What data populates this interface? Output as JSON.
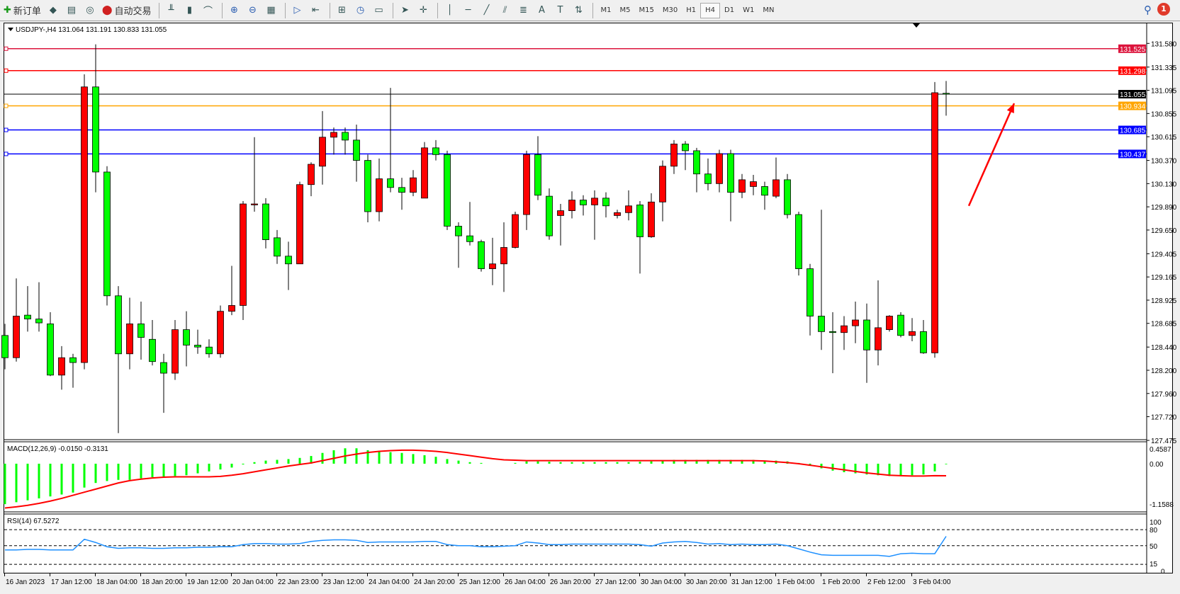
{
  "toolbar": {
    "new_order": "新订单",
    "auto_trading": "自动交易",
    "icons": [
      "new-order-icon",
      "market-watch-icon",
      "navigator-icon",
      "signals-icon",
      "auto-trading-icon",
      "bar-chart-icon",
      "candlestick-icon",
      "line-chart-icon",
      "zoom-in-icon",
      "zoom-out-icon",
      "tile-windows-icon",
      "auto-scroll-icon",
      "chart-shift-icon",
      "indicators-icon",
      "periods-icon",
      "templates-icon",
      "cursor-icon",
      "crosshair-icon",
      "vertical-line-icon",
      "horizontal-line-icon",
      "trendline-icon",
      "equidistant-channel-icon",
      "fibonacci-icon",
      "text-icon",
      "text-label-icon",
      "arrows-icon"
    ],
    "timeframes": [
      "M1",
      "M5",
      "M15",
      "M30",
      "H1",
      "H4",
      "D1",
      "W1",
      "MN"
    ],
    "active_timeframe": "H4",
    "notification_count": "1"
  },
  "chart": {
    "header": "USDJPY-,H4  131.064 131.191 130.833 131.055",
    "symbol": "USDJPY-",
    "period": "H4",
    "colors": {
      "bull": "#ff0000",
      "bear": "#00ff00",
      "macd_hist": "#00ff00",
      "signal": "#ff0000",
      "rsi": "#1e90ff"
    },
    "current_price": "131.055",
    "price_ticks": [
      "131.580",
      "131.335",
      "131.095",
      "130.855",
      "130.615",
      "130.370",
      "130.130",
      "129.890",
      "129.650",
      "129.405",
      "129.165",
      "128.925",
      "128.685",
      "128.440",
      "128.200",
      "127.960",
      "127.720",
      "127.475"
    ],
    "levels": [
      {
        "price": "131.525",
        "color": "#dc143c"
      },
      {
        "price": "131.298",
        "color": "#ff0000"
      },
      {
        "price": "130.934",
        "color": "#ffa500"
      },
      {
        "price": "130.685",
        "color": "#0000ff"
      },
      {
        "price": "130.437",
        "color": "#0000ff"
      }
    ],
    "annotation": {
      "type": "arrow",
      "color": "#ff0000",
      "from": {
        "bar": 85,
        "price": 129.9
      },
      "to": {
        "bar": 89,
        "price": 130.96
      }
    },
    "date_labels": [
      "16 Jan 2023",
      "17 Jan 12:00",
      "18 Jan 04:00",
      "18 Jan 20:00",
      "19 Jan 12:00",
      "20 Jan 04:00",
      "22 Jan 23:00",
      "23 Jan 12:00",
      "24 Jan 04:00",
      "24 Jan 20:00",
      "25 Jan 12:00",
      "26 Jan 04:00",
      "26 Jan 20:00",
      "27 Jan 12:00",
      "30 Jan 04:00",
      "30 Jan 20:00",
      "31 Jan 12:00",
      "1 Feb 04:00",
      "1 Feb 20:00",
      "2 Feb 12:00",
      "3 Feb 04:00"
    ]
  },
  "chart_data": {
    "type": "candlestick",
    "ohlc": [
      [
        128.56,
        128.68,
        128.21,
        128.33
      ],
      [
        128.33,
        129.15,
        128.29,
        128.76
      ],
      [
        128.77,
        129.07,
        128.6,
        128.73
      ],
      [
        128.73,
        129.11,
        128.6,
        128.69
      ],
      [
        128.68,
        128.8,
        128.14,
        128.15
      ],
      [
        128.15,
        128.45,
        128.0,
        128.33
      ],
      [
        128.33,
        128.37,
        128.02,
        128.28
      ],
      [
        128.28,
        131.26,
        128.21,
        131.13
      ],
      [
        131.13,
        131.57,
        130.04,
        130.25
      ],
      [
        130.25,
        130.31,
        128.87,
        128.97
      ],
      [
        128.97,
        129.07,
        127.55,
        128.37
      ],
      [
        128.37,
        128.95,
        128.21,
        128.68
      ],
      [
        128.68,
        128.91,
        128.31,
        128.54
      ],
      [
        128.52,
        128.72,
        128.25,
        128.29
      ],
      [
        128.28,
        128.37,
        127.76,
        128.17
      ],
      [
        128.17,
        128.72,
        128.1,
        128.62
      ],
      [
        128.62,
        128.81,
        128.24,
        128.46
      ],
      [
        128.46,
        128.62,
        128.37,
        128.44
      ],
      [
        128.44,
        128.52,
        128.33,
        128.37
      ],
      [
        128.37,
        128.87,
        128.33,
        128.81
      ],
      [
        128.81,
        129.28,
        128.77,
        128.87
      ],
      [
        128.87,
        129.95,
        128.72,
        129.92
      ],
      [
        129.91,
        130.61,
        129.84,
        129.92
      ],
      [
        129.92,
        129.98,
        129.46,
        129.55
      ],
      [
        129.57,
        129.65,
        129.3,
        129.38
      ],
      [
        129.38,
        129.53,
        129.03,
        129.3
      ],
      [
        129.3,
        130.15,
        129.3,
        130.12
      ],
      [
        130.12,
        130.35,
        130.0,
        130.33
      ],
      [
        130.31,
        130.88,
        130.12,
        130.61
      ],
      [
        130.61,
        130.71,
        130.43,
        130.66
      ],
      [
        130.66,
        130.71,
        130.43,
        130.58
      ],
      [
        130.58,
        130.74,
        130.15,
        130.37
      ],
      [
        130.37,
        130.43,
        129.73,
        129.84
      ],
      [
        129.84,
        130.39,
        129.74,
        130.18
      ],
      [
        130.18,
        131.12,
        130.04,
        130.09
      ],
      [
        130.09,
        130.19,
        129.86,
        130.04
      ],
      [
        130.04,
        130.27,
        130.0,
        130.19
      ],
      [
        129.98,
        130.56,
        129.98,
        130.5
      ],
      [
        130.5,
        130.58,
        130.37,
        130.43
      ],
      [
        130.43,
        130.47,
        129.65,
        129.69
      ],
      [
        129.69,
        129.73,
        129.26,
        129.59
      ],
      [
        129.59,
        129.94,
        129.49,
        129.53
      ],
      [
        129.53,
        129.55,
        129.22,
        129.25
      ],
      [
        129.25,
        129.57,
        129.08,
        129.3
      ],
      [
        129.3,
        129.73,
        129.01,
        129.47
      ],
      [
        129.47,
        129.84,
        129.46,
        129.81
      ],
      [
        129.81,
        130.47,
        129.65,
        130.43
      ],
      [
        130.43,
        130.62,
        129.96,
        130.01
      ],
      [
        130.0,
        130.08,
        129.55,
        129.59
      ],
      [
        129.8,
        129.92,
        129.49,
        129.85
      ],
      [
        129.85,
        130.05,
        129.77,
        129.96
      ],
      [
        129.96,
        130.01,
        129.8,
        129.91
      ],
      [
        129.91,
        130.06,
        129.55,
        129.98
      ],
      [
        129.98,
        130.04,
        129.78,
        129.9
      ],
      [
        129.8,
        129.86,
        129.77,
        129.83
      ],
      [
        129.83,
        130.06,
        129.75,
        129.9
      ],
      [
        129.91,
        129.95,
        129.2,
        129.58
      ],
      [
        129.58,
        130.03,
        129.57,
        129.94
      ],
      [
        129.94,
        130.37,
        129.74,
        130.31
      ],
      [
        130.31,
        130.58,
        130.23,
        130.54
      ],
      [
        130.54,
        130.57,
        130.27,
        130.47
      ],
      [
        130.47,
        130.5,
        130.04,
        130.23
      ],
      [
        130.23,
        130.39,
        130.06,
        130.13
      ],
      [
        130.13,
        130.48,
        130.04,
        130.44
      ],
      [
        130.44,
        130.48,
        129.74,
        130.04
      ],
      [
        130.04,
        130.23,
        129.98,
        130.17
      ],
      [
        130.1,
        130.22,
        130.01,
        130.15
      ],
      [
        130.1,
        130.15,
        129.86,
        130.01
      ],
      [
        130.0,
        130.4,
        129.98,
        130.17
      ],
      [
        130.17,
        130.23,
        129.77,
        129.81
      ],
      [
        129.81,
        129.84,
        129.18,
        129.25
      ],
      [
        129.25,
        129.3,
        128.56,
        128.76
      ],
      [
        128.76,
        129.86,
        128.41,
        128.6
      ],
      [
        128.6,
        128.8,
        128.17,
        128.59
      ],
      [
        128.59,
        128.76,
        128.41,
        128.66
      ],
      [
        128.66,
        128.91,
        128.48,
        128.72
      ],
      [
        128.72,
        128.89,
        128.07,
        128.41
      ],
      [
        128.41,
        129.13,
        128.25,
        128.64
      ],
      [
        128.62,
        128.77,
        128.6,
        128.76
      ],
      [
        128.77,
        128.8,
        128.54,
        128.56
      ],
      [
        128.56,
        128.74,
        128.5,
        128.6
      ],
      [
        128.6,
        128.72,
        128.37,
        128.38
      ],
      [
        128.38,
        131.18,
        128.33,
        131.07
      ],
      [
        131.064,
        131.191,
        130.833,
        131.055
      ]
    ],
    "ylim": [
      127.4,
      131.8
    ],
    "macd": {
      "label": "MACD(12,26,9) -0.0150 -0.3131",
      "ticks": [
        "0.4587",
        "0.00",
        "-1.1588"
      ],
      "ylim": [
        -1.1588,
        0.4587
      ],
      "hist": [
        -1.05,
        -1.0,
        -0.95,
        -0.9,
        -0.85,
        -0.8,
        -0.75,
        -0.62,
        -0.5,
        -0.45,
        -0.42,
        -0.42,
        -0.38,
        -0.35,
        -0.35,
        -0.32,
        -0.3,
        -0.25,
        -0.2,
        -0.15,
        -0.1,
        -0.02,
        0.04,
        0.08,
        0.1,
        0.12,
        0.15,
        0.2,
        0.28,
        0.35,
        0.4,
        0.4,
        0.35,
        0.32,
        0.3,
        0.28,
        0.25,
        0.22,
        0.18,
        0.12,
        0.08,
        0.04,
        0.02,
        0.0,
        0.0,
        0.02,
        0.06,
        0.06,
        0.05,
        0.04,
        0.04,
        0.04,
        0.04,
        0.04,
        0.04,
        0.04,
        0.05,
        0.06,
        0.08,
        0.1,
        0.1,
        0.1,
        0.1,
        0.1,
        0.1,
        0.1,
        0.1,
        0.08,
        0.08,
        0.06,
        0.02,
        -0.05,
        -0.12,
        -0.18,
        -0.22,
        -0.25,
        -0.28,
        -0.3,
        -0.32,
        -0.32,
        -0.3,
        -0.28,
        -0.2,
        -0.015
      ],
      "signal": [
        -1.15,
        -1.12,
        -1.08,
        -1.03,
        -0.97,
        -0.9,
        -0.82,
        -0.74,
        -0.66,
        -0.58,
        -0.5,
        -0.44,
        -0.4,
        -0.37,
        -0.35,
        -0.34,
        -0.34,
        -0.34,
        -0.34,
        -0.33,
        -0.3,
        -0.26,
        -0.21,
        -0.16,
        -0.11,
        -0.06,
        -0.02,
        0.02,
        0.08,
        0.14,
        0.2,
        0.25,
        0.29,
        0.32,
        0.34,
        0.35,
        0.35,
        0.34,
        0.32,
        0.29,
        0.25,
        0.21,
        0.17,
        0.13,
        0.1,
        0.09,
        0.08,
        0.08,
        0.08,
        0.08,
        0.08,
        0.08,
        0.08,
        0.08,
        0.08,
        0.08,
        0.08,
        0.08,
        0.08,
        0.08,
        0.08,
        0.08,
        0.08,
        0.08,
        0.08,
        0.08,
        0.08,
        0.07,
        0.05,
        0.03,
        0.0,
        -0.04,
        -0.08,
        -0.12,
        -0.16,
        -0.2,
        -0.24,
        -0.27,
        -0.3,
        -0.31,
        -0.32,
        -0.32,
        -0.31,
        -0.3131
      ]
    },
    "rsi": {
      "label": "RSI(14) 67.5272",
      "ticks": [
        "100",
        "80",
        "50",
        "15",
        "0"
      ],
      "levels": [
        80,
        50,
        15
      ],
      "ylim": [
        0,
        100
      ],
      "values": [
        42,
        42,
        43,
        43,
        42,
        42,
        42,
        62,
        56,
        48,
        45,
        46,
        46,
        45,
        45,
        46,
        46,
        47,
        47,
        48,
        48,
        52,
        54,
        54,
        53,
        53,
        54,
        58,
        60,
        61,
        61,
        60,
        56,
        57,
        57,
        57,
        57,
        58,
        58,
        52,
        50,
        50,
        48,
        48,
        49,
        50,
        57,
        55,
        52,
        52,
        53,
        53,
        53,
        53,
        53,
        53,
        52,
        49,
        55,
        57,
        58,
        56,
        53,
        54,
        52,
        53,
        52,
        52,
        53,
        50,
        44,
        38,
        33,
        32,
        32,
        32,
        32,
        32,
        30,
        35,
        36,
        35,
        35,
        67.5272
      ]
    }
  }
}
